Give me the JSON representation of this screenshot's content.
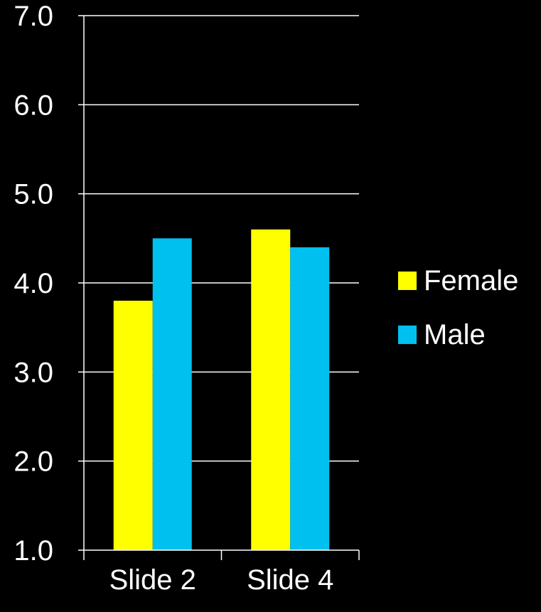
{
  "chart_data": {
    "type": "bar",
    "categories": [
      "Slide 2",
      "Slide 4"
    ],
    "series": [
      {
        "name": "Female",
        "values": [
          3.8,
          4.6
        ],
        "color": "#ffff00"
      },
      {
        "name": "Male",
        "values": [
          4.5,
          4.4
        ],
        "color": "#00c0f0"
      }
    ],
    "ylim": [
      1.0,
      7.0
    ],
    "yticks": [
      "1.0",
      "2.0",
      "3.0",
      "4.0",
      "5.0",
      "6.0",
      "7.0"
    ],
    "grid": true,
    "legend_position": "right",
    "title": "",
    "xlabel": "",
    "ylabel": ""
  },
  "colors": {
    "background": "#000000",
    "axis": "#ffffff",
    "text": "#ffffff"
  }
}
